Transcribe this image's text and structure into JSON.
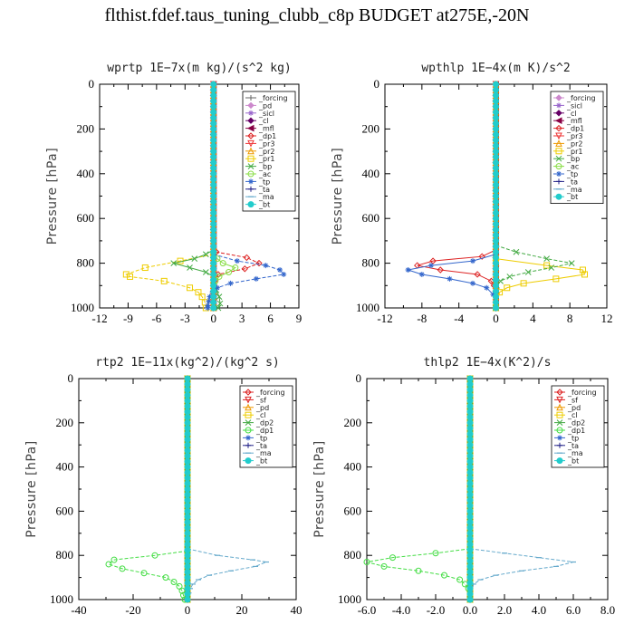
{
  "title": "flthist.fdef.taus_tuning_clubb_c8p  BUDGET at275E,-20N",
  "chart_data": [
    {
      "id": "wprtp",
      "type": "line",
      "title": "wprtp   1E−7x(m kg)/(s^2 kg)",
      "ylabel": "Pressure [hPa]",
      "xlim": [
        -12,
        9
      ],
      "xticks": [
        "-12",
        "-9",
        "-6",
        "-3",
        "0",
        "3",
        "6",
        "9"
      ],
      "xtick_values": [
        -12,
        -9,
        -6,
        -3,
        0,
        3,
        6,
        9
      ],
      "ylim": [
        0,
        1000
      ],
      "yticks": [
        "0",
        "200",
        "400",
        "600",
        "800",
        "1000"
      ],
      "ytick_values": [
        0,
        200,
        400,
        600,
        800,
        1000
      ],
      "legend_position": "top-right",
      "series": [
        {
          "name": "_forcing",
          "color": "#666666",
          "marker": "plus",
          "y": [
            0,
            1000
          ],
          "x": [
            0,
            0
          ]
        },
        {
          "name": "_pd",
          "color": "#cc88cc",
          "marker": "diamond",
          "y": [
            0,
            1000
          ],
          "x": [
            0,
            0
          ]
        },
        {
          "name": "_sicl",
          "color": "#9966cc",
          "marker": "star",
          "y": [
            0,
            1000
          ],
          "x": [
            0,
            0
          ]
        },
        {
          "name": "_cl",
          "color": "#660066",
          "marker": "diamond",
          "y": [
            0,
            1000
          ],
          "x": [
            0,
            0
          ]
        },
        {
          "name": "_mfl",
          "color": "#880044",
          "marker": "triangle-left",
          "y": [
            0,
            1000
          ],
          "x": [
            0,
            0
          ]
        },
        {
          "name": "_dp1",
          "color": "#dd2222",
          "marker": "diamond-open",
          "y": [
            700,
            750,
            775,
            800,
            825,
            850,
            875,
            900,
            1000
          ],
          "x": [
            0,
            0.3,
            3.5,
            4.8,
            3.3,
            0.5,
            0.2,
            0.1,
            0
          ]
        },
        {
          "name": "_pr3",
          "color": "#ee3333",
          "marker": "triangle-down",
          "y": [
            0,
            1000
          ],
          "x": [
            0,
            0
          ]
        },
        {
          "name": "_pr2",
          "color": "#ee9900",
          "marker": "triangle-up",
          "y": [
            0,
            1000
          ],
          "x": [
            0,
            0
          ]
        },
        {
          "name": "_pr1",
          "color": "#eecc00",
          "marker": "square-open",
          "y": [
            760,
            790,
            820,
            850,
            860,
            880,
            910,
            930,
            950,
            975,
            1000
          ],
          "x": [
            0,
            -3.5,
            -7.2,
            -9.2,
            -8.8,
            -5.2,
            -2.5,
            -1.6,
            -1.2,
            -0.9,
            -0.8
          ]
        },
        {
          "name": "_bp",
          "color": "#44aa44",
          "marker": "cross",
          "y": [
            740,
            760,
            780,
            800,
            820,
            840,
            860,
            880,
            900,
            920,
            950,
            980,
            1000
          ],
          "x": [
            0,
            -0.8,
            -2.0,
            -4.2,
            -2.5,
            -0.8,
            0,
            0,
            0.1,
            0.3,
            0.6,
            0.7,
            0.5
          ]
        },
        {
          "name": "_ac",
          "color": "#88dd44",
          "marker": "circle-open",
          "y": [
            750,
            780,
            800,
            820,
            840,
            860,
            880,
            900,
            1000
          ],
          "x": [
            0,
            0.4,
            1.0,
            2.3,
            1.6,
            0.6,
            0.2,
            0,
            0
          ]
        },
        {
          "name": "_tp",
          "color": "#3366cc",
          "marker": "star",
          "y": [
            760,
            790,
            810,
            830,
            850,
            870,
            890,
            910,
            930,
            950,
            970,
            990,
            1000
          ],
          "x": [
            0,
            2.5,
            5.5,
            7.0,
            7.4,
            4.5,
            1.8,
            0.4,
            -0.1,
            -0.4,
            -0.5,
            -0.6,
            -0.6
          ]
        },
        {
          "name": "_ta",
          "color": "#222288",
          "marker": "plus",
          "y": [
            0,
            1000
          ],
          "x": [
            0,
            0
          ]
        },
        {
          "name": "_ma",
          "color": "#66aacc",
          "marker": "dash",
          "y": [
            0,
            1000
          ],
          "x": [
            0,
            0
          ]
        },
        {
          "name": "_bt",
          "color": "#22cccc",
          "marker": "filled-circle",
          "y": [
            0,
            1000
          ],
          "x": [
            0,
            0
          ]
        }
      ]
    },
    {
      "id": "wpthlp",
      "type": "line",
      "title": "wpthlp   1E−4x(m K)/s^2",
      "ylabel": "Pressure [hPa]",
      "xlim": [
        -12,
        12
      ],
      "xticks": [
        "-12",
        "-8",
        "-4",
        "0",
        "4",
        "8",
        "12"
      ],
      "xtick_values": [
        -12,
        -8,
        -4,
        0,
        4,
        8,
        12
      ],
      "ylim": [
        0,
        1000
      ],
      "yticks": [
        "0",
        "200",
        "400",
        "600",
        "800",
        "1000"
      ],
      "ytick_values": [
        0,
        200,
        400,
        600,
        800,
        1000
      ],
      "legend_position": "top-right",
      "series": [
        {
          "name": "_forcing",
          "color": "#cc88cc",
          "marker": "diamond",
          "y": [
            0,
            1000
          ],
          "x": [
            0,
            0
          ]
        },
        {
          "name": "_sicl",
          "color": "#9966cc",
          "marker": "star",
          "y": [
            0,
            1000
          ],
          "x": [
            0,
            0
          ]
        },
        {
          "name": "_cl",
          "color": "#660066",
          "marker": "diamond",
          "y": [
            0,
            1000
          ],
          "x": [
            0,
            0
          ]
        },
        {
          "name": "_mfl",
          "color": "#880044",
          "marker": "triangle-left",
          "y": [
            0,
            1000
          ],
          "x": [
            0,
            0
          ]
        },
        {
          "name": "_dp1",
          "color": "#dd2222",
          "marker": "diamond-open",
          "y": [
            740,
            770,
            790,
            810,
            830,
            850,
            880,
            900,
            1000
          ],
          "x": [
            0,
            -1.5,
            -6.8,
            -8.5,
            -6.0,
            -2.0,
            -0.5,
            -0.2,
            0
          ]
        },
        {
          "name": "_pr3",
          "color": "#ee3333",
          "marker": "triangle-down",
          "y": [
            0,
            1000
          ],
          "x": [
            0,
            0
          ]
        },
        {
          "name": "_pr2",
          "color": "#ee9900",
          "marker": "triangle-up",
          "y": [
            0,
            1000
          ],
          "x": [
            0,
            0
          ]
        },
        {
          "name": "_pr1",
          "color": "#eecc00",
          "marker": "square-open",
          "y": [
            780,
            810,
            830,
            850,
            870,
            890,
            910,
            930,
            1000
          ],
          "x": [
            0,
            5.5,
            9.4,
            9.6,
            6.5,
            3.0,
            1.2,
            0.4,
            0
          ]
        },
        {
          "name": "_bp",
          "color": "#44aa44",
          "marker": "cross",
          "y": [
            720,
            750,
            780,
            800,
            820,
            840,
            860,
            880,
            900,
            1000
          ],
          "x": [
            0,
            2.2,
            5.5,
            8.2,
            6.0,
            3.5,
            1.5,
            0.5,
            0.1,
            0
          ]
        },
        {
          "name": "_ac",
          "color": "#88dd44",
          "marker": "circle-open",
          "y": [
            0,
            1000
          ],
          "x": [
            0,
            0
          ]
        },
        {
          "name": "_tp",
          "color": "#3366cc",
          "marker": "star",
          "y": [
            760,
            790,
            810,
            830,
            850,
            870,
            890,
            910,
            940,
            1000
          ],
          "x": [
            0,
            -2.5,
            -7.0,
            -9.5,
            -8.0,
            -5.0,
            -2.5,
            -1.0,
            -0.3,
            0
          ]
        },
        {
          "name": "_ta",
          "color": "#222288",
          "marker": "plus",
          "y": [
            0,
            1000
          ],
          "x": [
            0,
            0
          ]
        },
        {
          "name": "_ma",
          "color": "#66aacc",
          "marker": "dash",
          "y": [
            0,
            1000
          ],
          "x": [
            0,
            0
          ]
        },
        {
          "name": "_bt",
          "color": "#22cccc",
          "marker": "filled-circle",
          "y": [
            0,
            1000
          ],
          "x": [
            0,
            0
          ]
        }
      ]
    },
    {
      "id": "rtp2",
      "type": "line",
      "title": "rtp2   1E−11x(kg^2)/(kg^2 s)",
      "ylabel": "Pressure [hPa]",
      "xlim": [
        -40,
        40
      ],
      "xticks": [
        "-40",
        "-20",
        "0",
        "20",
        "40"
      ],
      "xtick_values": [
        -40,
        -20,
        0,
        20,
        40
      ],
      "ylim": [
        0,
        1000
      ],
      "yticks": [
        "0",
        "200",
        "400",
        "600",
        "800",
        "1000"
      ],
      "ytick_values": [
        0,
        200,
        400,
        600,
        800,
        1000
      ],
      "legend_position": "top-right",
      "series": [
        {
          "name": "_forcing",
          "color": "#dd2222",
          "marker": "diamond-open",
          "y": [
            0,
            1000
          ],
          "x": [
            0,
            0
          ]
        },
        {
          "name": "_sf",
          "color": "#dd2222",
          "marker": "triangle-down",
          "y": [
            0,
            1000
          ],
          "x": [
            0,
            0
          ]
        },
        {
          "name": "_pd",
          "color": "#ee9900",
          "marker": "triangle-up",
          "y": [
            0,
            1000
          ],
          "x": [
            0,
            0
          ]
        },
        {
          "name": "_cl",
          "color": "#eecc00",
          "marker": "square-open",
          "y": [
            0,
            1000
          ],
          "x": [
            0,
            0
          ]
        },
        {
          "name": "_dp2",
          "color": "#44aa44",
          "marker": "cross",
          "y": [
            0,
            1000
          ],
          "x": [
            0,
            0
          ]
        },
        {
          "name": "_dp1",
          "color": "#44dd44",
          "marker": "circle-open",
          "y": [
            780,
            800,
            820,
            840,
            860,
            880,
            900,
            920,
            940,
            960,
            980,
            1000
          ],
          "x": [
            0,
            -12,
            -27,
            -29,
            -24,
            -16,
            -8,
            -5,
            -3,
            -2,
            -1.5,
            -1
          ]
        },
        {
          "name": "_tp",
          "color": "#3366cc",
          "marker": "star",
          "y": [
            0,
            1000
          ],
          "x": [
            0,
            0
          ]
        },
        {
          "name": "_ta",
          "color": "#222288",
          "marker": "plus",
          "y": [
            0,
            1000
          ],
          "x": [
            0,
            0
          ]
        },
        {
          "name": "_ma",
          "color": "#66aacc",
          "marker": "dash",
          "y": [
            770,
            800,
            820,
            830,
            850,
            870,
            890,
            910,
            930,
            950,
            970,
            1000
          ],
          "x": [
            0,
            11,
            24,
            29,
            25,
            16,
            8,
            4,
            2,
            1,
            0.5,
            0
          ]
        },
        {
          "name": "_bt",
          "color": "#22cccc",
          "marker": "filled-circle",
          "y": [
            0,
            1000
          ],
          "x": [
            0,
            0
          ]
        }
      ]
    },
    {
      "id": "thlp2",
      "type": "line",
      "title": "thlp2   1E−4x(K^2)/s",
      "ylabel": "Pressure [hPa]",
      "xlim": [
        -6,
        8
      ],
      "xticks": [
        "-6.0",
        "-4.0",
        "-2.0",
        "0.0",
        "2.0",
        "4.0",
        "6.0",
        "8.0"
      ],
      "xtick_values": [
        -6,
        -4,
        -2,
        0,
        2,
        4,
        6,
        8
      ],
      "ylim": [
        0,
        1000
      ],
      "yticks": [
        "0",
        "200",
        "400",
        "600",
        "800",
        "1000"
      ],
      "ytick_values": [
        0,
        200,
        400,
        600,
        800,
        1000
      ],
      "legend_position": "top-right",
      "series": [
        {
          "name": "_forcing",
          "color": "#dd2222",
          "marker": "diamond-open",
          "y": [
            0,
            1000
          ],
          "x": [
            0,
            0
          ]
        },
        {
          "name": "_sf",
          "color": "#dd2222",
          "marker": "triangle-down",
          "y": [
            0,
            1000
          ],
          "x": [
            0,
            0
          ]
        },
        {
          "name": "_pd",
          "color": "#ee9900",
          "marker": "triangle-up",
          "y": [
            0,
            1000
          ],
          "x": [
            0,
            0
          ]
        },
        {
          "name": "_cl",
          "color": "#eecc00",
          "marker": "square-open",
          "y": [
            0,
            1000
          ],
          "x": [
            0,
            0
          ]
        },
        {
          "name": "_dp2",
          "color": "#44aa44",
          "marker": "cross",
          "y": [
            0,
            1000
          ],
          "x": [
            0,
            0
          ]
        },
        {
          "name": "_dp1",
          "color": "#44dd44",
          "marker": "circle-open",
          "y": [
            770,
            790,
            810,
            830,
            850,
            870,
            890,
            910,
            930,
            950,
            1000
          ],
          "x": [
            0,
            -2.0,
            -4.5,
            -6.0,
            -5.0,
            -3.0,
            -1.5,
            -0.6,
            -0.3,
            -0.1,
            0
          ]
        },
        {
          "name": "_tp",
          "color": "#3366cc",
          "marker": "star",
          "y": [
            0,
            1000
          ],
          "x": [
            0,
            0
          ]
        },
        {
          "name": "_ta",
          "color": "#222288",
          "marker": "plus",
          "y": [
            0,
            1000
          ],
          "x": [
            0,
            0
          ]
        },
        {
          "name": "_ma",
          "color": "#66aacc",
          "marker": "dash",
          "y": [
            770,
            790,
            810,
            830,
            850,
            870,
            890,
            910,
            930,
            1000
          ],
          "x": [
            0,
            2.0,
            4.0,
            6.0,
            5.0,
            3.0,
            1.5,
            0.6,
            0.2,
            0
          ]
        },
        {
          "name": "_bt",
          "color": "#22cccc",
          "marker": "filled-circle",
          "y": [
            0,
            1000
          ],
          "x": [
            0,
            0
          ]
        }
      ]
    }
  ]
}
